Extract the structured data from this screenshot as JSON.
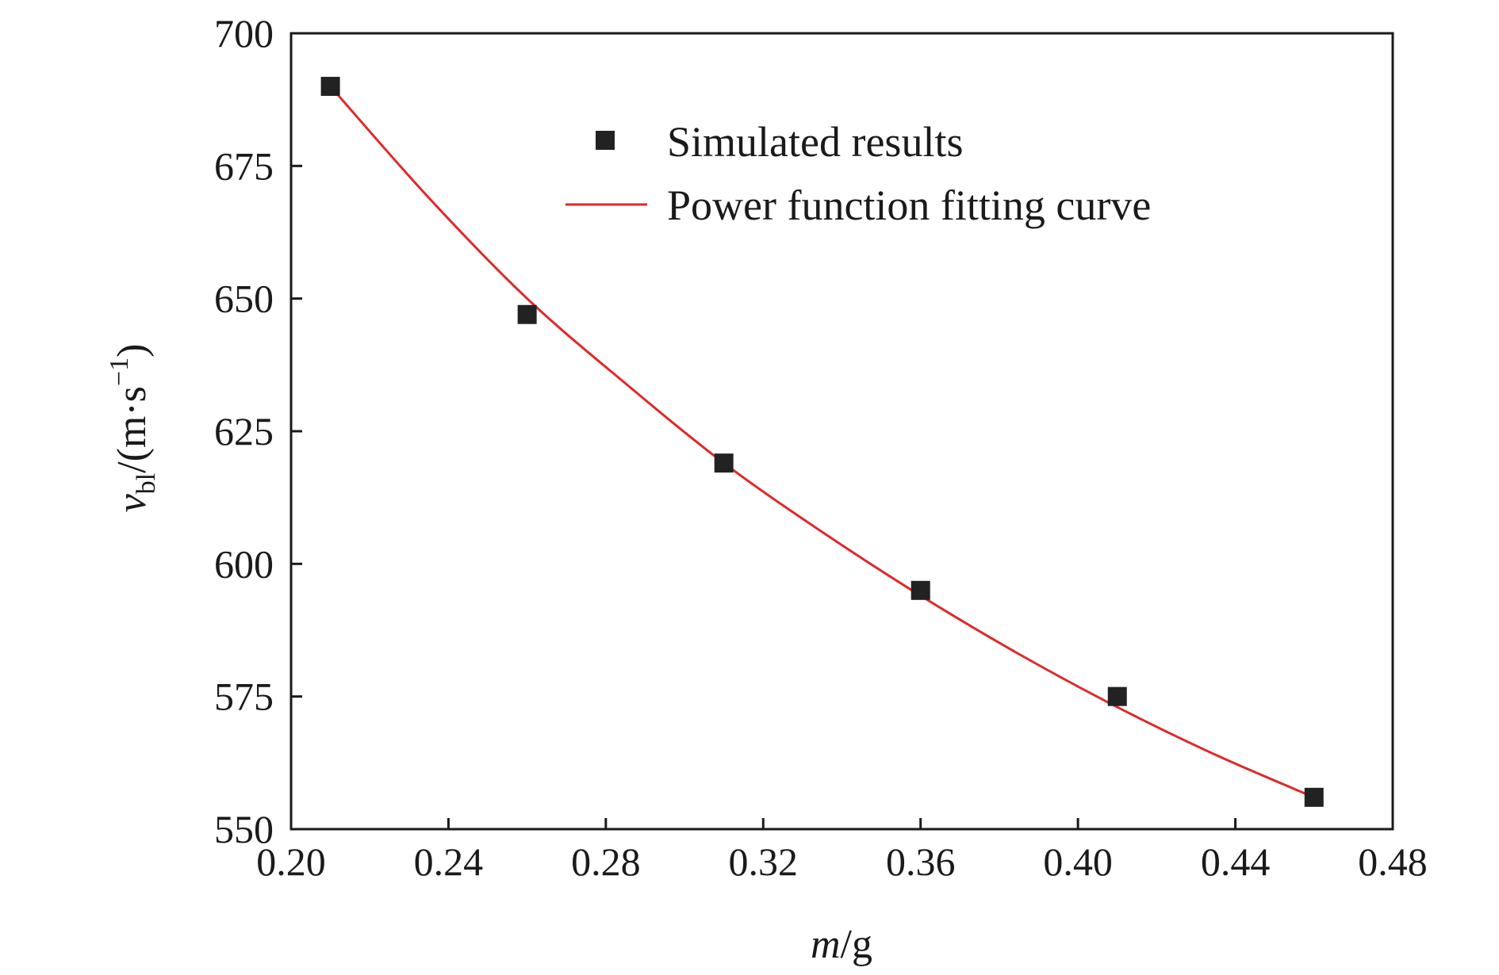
{
  "chart_data": {
    "type": "scatter",
    "x": [
      0.21,
      0.26,
      0.31,
      0.36,
      0.41,
      0.46
    ],
    "series": [
      {
        "name": "Simulated results",
        "kind": "scatter",
        "marker": "square",
        "color": "#222222",
        "values": [
          690,
          647,
          619,
          595,
          575,
          556
        ]
      },
      {
        "name": "Power function fitting curve",
        "kind": "line",
        "color": "#e0282a",
        "x": [
          0.21,
          0.235,
          0.26,
          0.285,
          0.31,
          0.335,
          0.36,
          0.385,
          0.41,
          0.435,
          0.46
        ],
        "values": [
          690,
          669,
          650,
          634,
          619,
          606,
          594,
          583,
          573,
          564,
          556
        ]
      }
    ],
    "xlabel": {
      "italic": "m",
      "rest": "/g"
    },
    "ylabel": {
      "italic": "v",
      "sub": "bl",
      "rest": "/(m·s",
      "sup": "−1",
      "close": ")"
    },
    "xlim": [
      0.2,
      0.48
    ],
    "ylim": [
      550,
      700
    ],
    "xticks": [
      "0.20",
      "0.24",
      "0.28",
      "0.32",
      "0.36",
      "0.40",
      "0.44",
      "0.48"
    ],
    "yticks": [
      "550",
      "575",
      "600",
      "625",
      "650",
      "675",
      "700"
    ],
    "legend_position": "top-right",
    "grid": false
  }
}
